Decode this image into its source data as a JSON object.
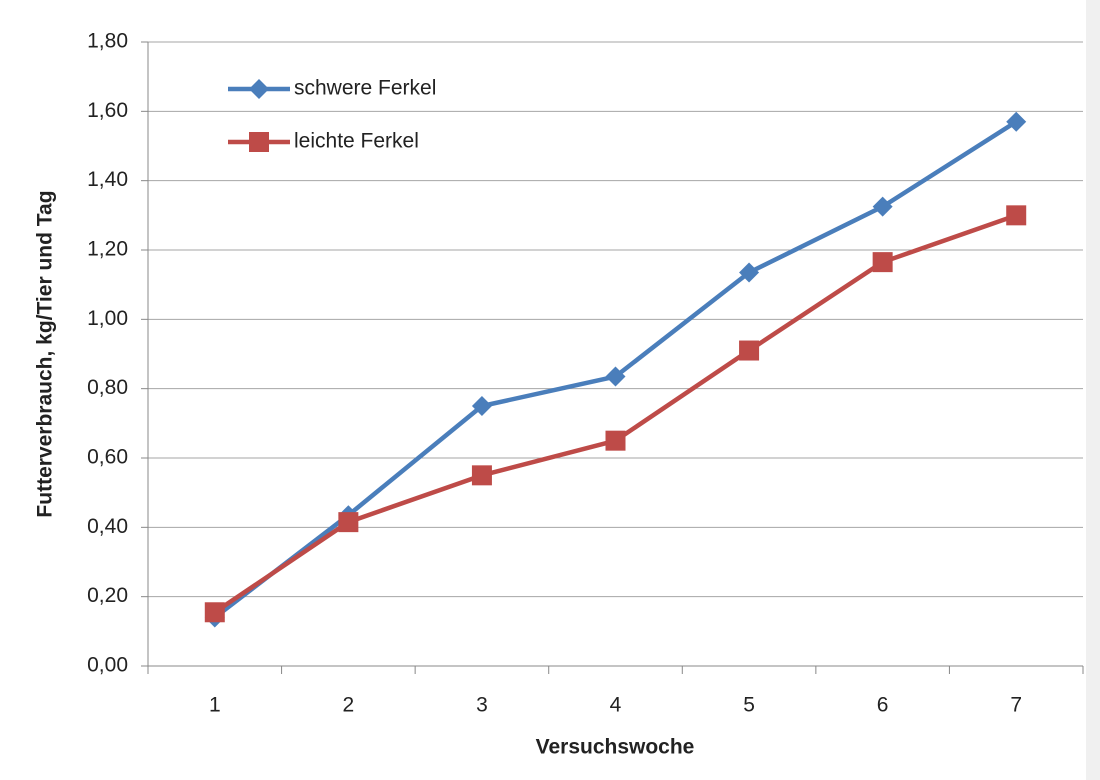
{
  "chart_data": {
    "type": "line",
    "x_label": "Versuchswoche",
    "y_label": "Futterverbrauch, kg/Tier und Tag",
    "categories": [
      "1",
      "2",
      "3",
      "4",
      "5",
      "6",
      "7"
    ],
    "series": [
      {
        "name": "schwere Ferkel",
        "color": "#4a7ebb",
        "marker": "diamond",
        "values": [
          0.14,
          0.435,
          0.75,
          0.835,
          1.135,
          1.325,
          1.57
        ]
      },
      {
        "name": "leichte Ferkel",
        "color": "#be4b48",
        "marker": "square",
        "values": [
          0.155,
          0.415,
          0.55,
          0.65,
          0.91,
          1.165,
          1.3
        ]
      }
    ],
    "ylim": [
      0,
      1.8
    ],
    "yticks": [
      {
        "value": 0,
        "label": "0,00"
      },
      {
        "value": 0.2,
        "label": "0,20"
      },
      {
        "value": 0.4,
        "label": "0,40"
      },
      {
        "value": 0.6,
        "label": "0,60"
      },
      {
        "value": 0.8,
        "label": "0,80"
      },
      {
        "value": 1.0,
        "label": "1,00"
      },
      {
        "value": 1.2,
        "label": "1,20"
      },
      {
        "value": 1.4,
        "label": "1,40"
      },
      {
        "value": 1.6,
        "label": "1,60"
      },
      {
        "value": 1.8,
        "label": "1,80"
      }
    ],
    "grid": true,
    "legend": "top-left"
  }
}
